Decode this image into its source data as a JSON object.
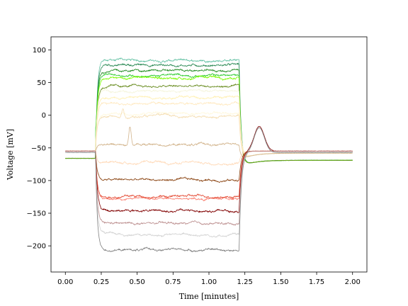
{
  "chart_data": {
    "type": "line",
    "title": "",
    "xlabel": "Time [minutes]",
    "ylabel": "Voltage [mV]",
    "xlim": [
      -0.1,
      2.1
    ],
    "ylim": [
      -240,
      120
    ],
    "xticks": [
      0.0,
      0.25,
      0.5,
      0.75,
      1.0,
      1.25,
      1.5,
      1.75,
      2.0
    ],
    "xtick_labels": [
      "0.00",
      "0.25",
      "0.50",
      "0.75",
      "1.00",
      "1.25",
      "1.50",
      "1.75",
      "2.00"
    ],
    "yticks": [
      -200,
      -150,
      -100,
      -50,
      0,
      50,
      100
    ],
    "ytick_labels": [
      "−200",
      "−150",
      "−100",
      "−50",
      "0",
      "50",
      "100"
    ],
    "grid": false,
    "legend": false,
    "stimulus": {
      "on": 0.21,
      "off": 1.21
    },
    "series": [
      {
        "color": "#66c2a5",
        "rest": -66,
        "level": 84
      },
      {
        "color": "#2e8b57",
        "rest": -66,
        "level": 77
      },
      {
        "color": "#228b22",
        "rest": -66,
        "level": 68
      },
      {
        "color": "#32cd32",
        "rest": -66,
        "level": 61
      },
      {
        "color": "#7cfc00",
        "rest": -66,
        "level": 57
      },
      {
        "color": "#6b8e23",
        "rest": -66,
        "level": 44
      },
      {
        "color": "#f5f5dc",
        "rest": -55,
        "level": 37
      },
      {
        "color": "#fff0b3",
        "rest": -55,
        "level": 28
      },
      {
        "color": "#ffe9c0",
        "rest": -55,
        "level": 18
      },
      {
        "color": "#fff8dc",
        "rest": -55,
        "level": 2
      },
      {
        "color": "#f5deb3",
        "rest": -55,
        "level": -2,
        "peak": [
          0.4,
          10
        ]
      },
      {
        "color": "#d2b48c",
        "rest": -55,
        "level": -45,
        "peak": [
          0.45,
          -17
        ]
      },
      {
        "color": "#ffdab9",
        "rest": -55,
        "level": -73
      },
      {
        "color": "#8b4513",
        "rest": -55,
        "level": -99
      },
      {
        "color": "#fa8072",
        "rest": -55,
        "level": -128
      },
      {
        "color": "#e34a33",
        "rest": -55,
        "level": -124
      },
      {
        "color": "#800000",
        "rest": -55,
        "level": -146,
        "rebound": true
      },
      {
        "color": "#bc8f8f",
        "rest": -55,
        "level": -166
      },
      {
        "color": "#d3d3d3",
        "rest": -57,
        "level": -183,
        "rebound": true
      },
      {
        "color": "#808080",
        "rest": -57,
        "level": -206,
        "rebound": true
      }
    ]
  }
}
